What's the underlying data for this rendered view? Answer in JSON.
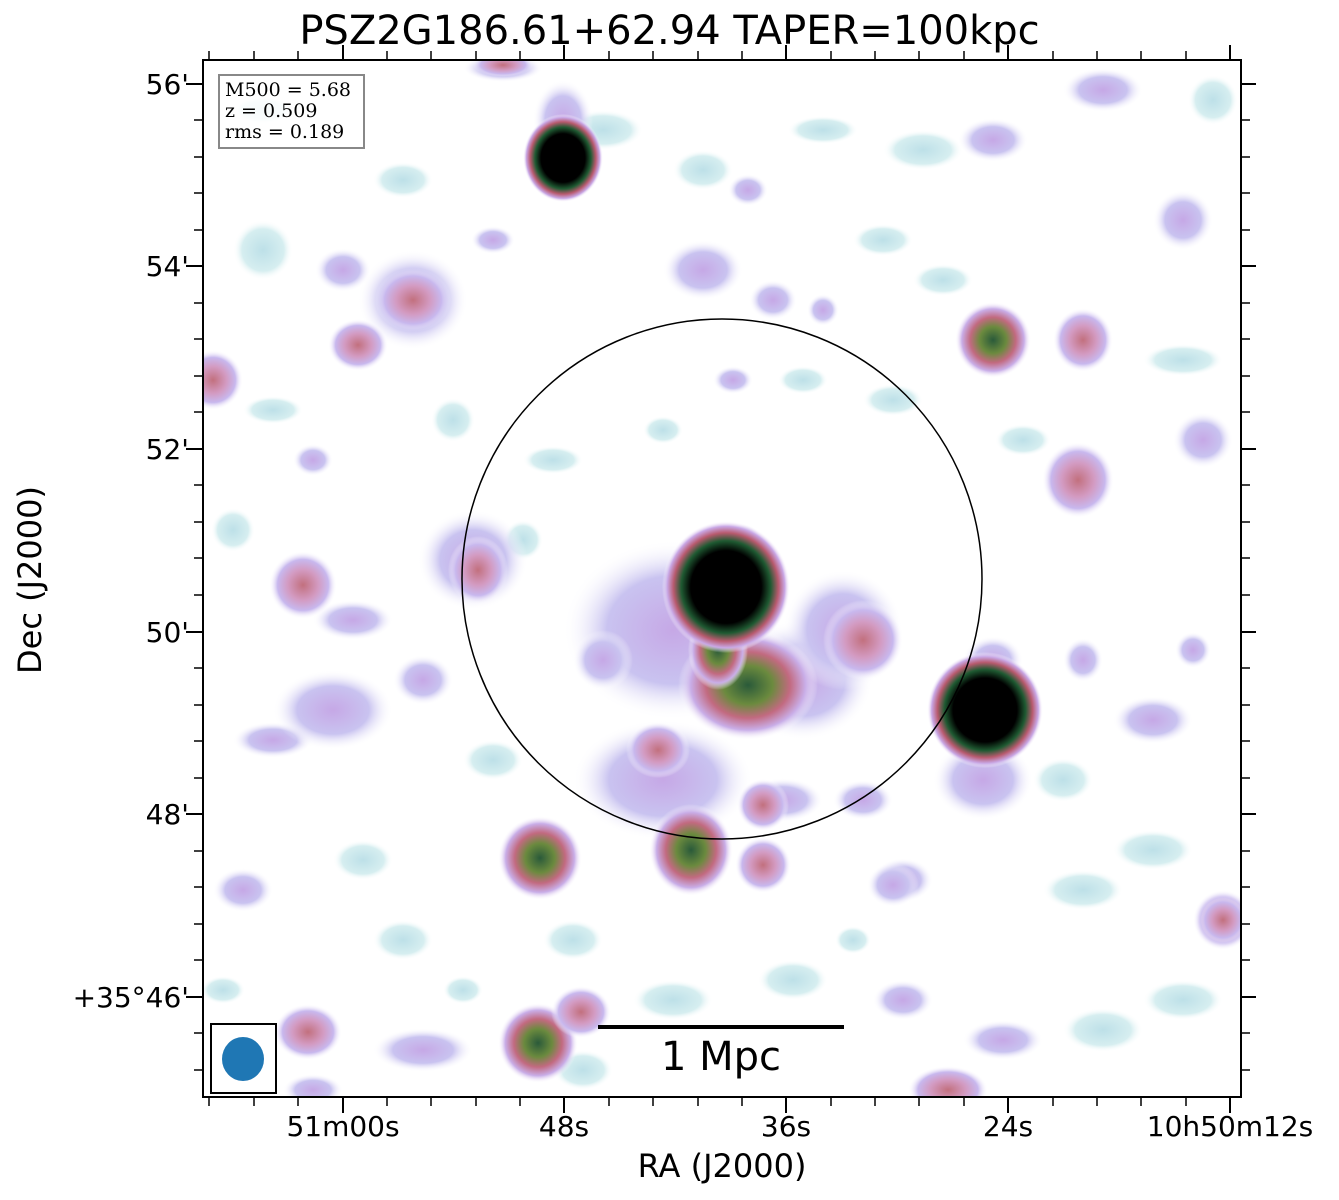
{
  "title": "PSZ2G186.61+62.94 TAPER=100kpc",
  "axes": {
    "xlabel": "RA (J2000)",
    "ylabel": "Dec (J2000)",
    "xticks": [
      "51m00s",
      "48s",
      "36s",
      "24s",
      "10h50m12s"
    ],
    "yticks": [
      "56'",
      "54'",
      "52'",
      "50'",
      "48'",
      "+35°46'"
    ]
  },
  "info": {
    "line1": "M500 = 5.68",
    "line2": "z = 0.509",
    "line3": "rms = 0.189"
  },
  "scalebar": {
    "label": "1 Mpc"
  },
  "colors": {
    "colormap": "cubehelix_r",
    "circle": "#000000",
    "beam": "#1f77b4"
  }
}
